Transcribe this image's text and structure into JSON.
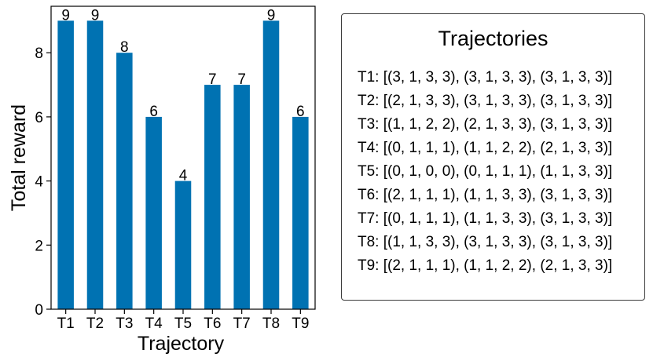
{
  "chart_data": {
    "type": "bar",
    "categories": [
      "T1",
      "T2",
      "T3",
      "T4",
      "T5",
      "T6",
      "T7",
      "T8",
      "T9"
    ],
    "values": [
      9,
      9,
      8,
      6,
      4,
      7,
      7,
      9,
      6
    ],
    "data_labels": [
      "9",
      "9",
      "8",
      "6",
      "4",
      "7",
      "7",
      "9",
      "6"
    ],
    "xlabel": "Trajectory",
    "ylabel": "Total reward",
    "ylim": [
      0,
      9.45
    ],
    "yticks": [
      0,
      2,
      4,
      6,
      8
    ],
    "ytick_labels": [
      "0",
      "2",
      "4",
      "6",
      "8"
    ],
    "bar_color": "#0072b2",
    "grid": false
  },
  "legend": {
    "title": "Trajectories",
    "placement": "right",
    "items": [
      "T1: [(3, 1, 3, 3), (3, 1, 3, 3), (3, 1, 3, 3)]",
      "T2: [(2, 1, 3, 3), (3, 1, 3, 3), (3, 1, 3, 3)]",
      "T3: [(1, 1, 2, 2), (2, 1, 3, 3), (3, 1, 3, 3)]",
      "T4: [(0, 1, 1, 1), (1, 1, 2, 2), (2, 1, 3, 3)]",
      "T5: [(0, 1, 0, 0), (0, 1, 1, 1), (1, 1, 3, 3)]",
      "T6: [(2, 1, 1, 1), (1, 1, 3, 3), (3, 1, 3, 3)]",
      "T7: [(0, 1, 1, 1), (1, 1, 3, 3), (3, 1, 3, 3)]",
      "T8: [(1, 1, 3, 3), (3, 1, 3, 3), (3, 1, 3, 3)]",
      "T9: [(2, 1, 1, 1), (1, 1, 2, 2), (2, 1, 3, 3)]"
    ]
  }
}
